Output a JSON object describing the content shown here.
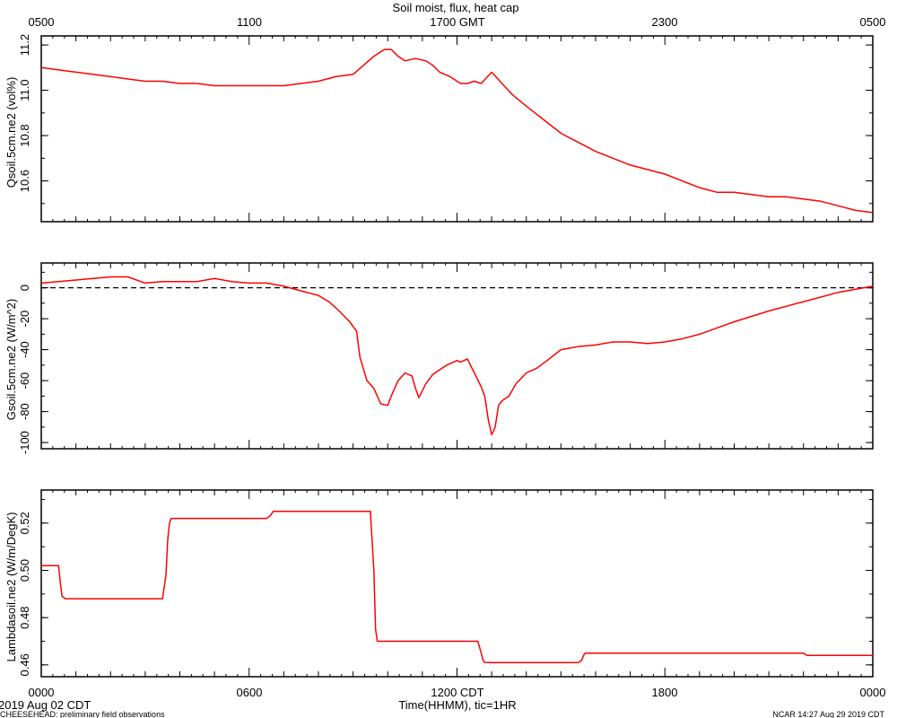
{
  "title": "Soil moist, flux, heat cap",
  "top_axis_ticks": [
    "0500",
    "1100",
    "1700 GMT",
    "2300",
    "0500"
  ],
  "bottom_axis_ticks": [
    "0000",
    "0600",
    "1200 CDT",
    "1800",
    "0000"
  ],
  "xlabel": "Time(HHMM), tic=1HR",
  "date_label": "2019 Aug 02 CDT",
  "footer_left": "CHEESEHEAD: preliminary field observations",
  "footer_right": "NCAR 14:27 Aug 29 2019 CDT",
  "colors": {
    "series": "#ff0000",
    "axes": "#000000",
    "zero_line": "#000000"
  },
  "chart_data": [
    {
      "type": "line",
      "name": "qsoil",
      "ylabel": "Qsoil.5cm.ne2 (vol%)",
      "xlim": [
        0,
        24
      ],
      "ylim": [
        10.42,
        11.24
      ],
      "yticks": [
        10.6,
        10.8,
        11.0,
        11.2
      ],
      "ytick_labels": [
        "10.6",
        "10.8",
        "11.0",
        "11.2"
      ],
      "zero_line": false,
      "x": [
        0,
        0.5,
        1,
        1.5,
        2,
        2.5,
        3,
        3.5,
        4,
        4.5,
        5,
        5.5,
        6,
        6.5,
        7,
        7.5,
        8,
        8.5,
        9,
        9.3,
        9.6,
        9.9,
        10.1,
        10.3,
        10.5,
        10.8,
        11.1,
        11.3,
        11.5,
        11.8,
        12.1,
        12.3,
        12.5,
        12.7,
        13,
        13.3,
        13.6,
        14,
        14.5,
        15,
        15.5,
        16,
        16.5,
        17,
        17.5,
        18,
        18.5,
        19,
        19.5,
        20,
        20.5,
        21,
        21.5,
        22,
        22.5,
        23,
        23.5,
        24
      ],
      "values": [
        11.1,
        11.09,
        11.08,
        11.07,
        11.06,
        11.05,
        11.04,
        11.04,
        11.03,
        11.03,
        11.02,
        11.02,
        11.02,
        11.02,
        11.02,
        11.03,
        11.04,
        11.06,
        11.07,
        11.11,
        11.15,
        11.18,
        11.18,
        11.15,
        11.13,
        11.14,
        11.13,
        11.11,
        11.08,
        11.06,
        11.03,
        11.03,
        11.04,
        11.03,
        11.08,
        11.03,
        10.98,
        10.93,
        10.87,
        10.81,
        10.77,
        10.73,
        10.7,
        10.67,
        10.65,
        10.63,
        10.6,
        10.57,
        10.55,
        10.55,
        10.54,
        10.53,
        10.53,
        10.52,
        10.51,
        10.49,
        10.47,
        10.46
      ]
    },
    {
      "type": "line",
      "name": "gsoil",
      "ylabel": "Gsoil.5cm.ne2 (W/m^2)",
      "xlim": [
        0,
        24
      ],
      "ylim": [
        -104,
        16
      ],
      "yticks": [
        -100,
        -80,
        -60,
        -40,
        -20,
        0
      ],
      "ytick_labels": [
        "-100",
        "-80",
        "-60",
        "-40",
        "-20",
        "0"
      ],
      "zero_line": true,
      "x": [
        0,
        0.5,
        1,
        1.5,
        2,
        2.5,
        3,
        3.5,
        4,
        4.5,
        5,
        5.5,
        6,
        6.5,
        7,
        7.5,
        8,
        8.3,
        8.6,
        8.9,
        9.0,
        9.1,
        9.2,
        9.4,
        9.6,
        9.8,
        10.0,
        10.1,
        10.3,
        10.5,
        10.7,
        10.8,
        10.9,
        11.1,
        11.3,
        11.5,
        11.7,
        11.9,
        12.0,
        12.1,
        12.3,
        12.5,
        12.7,
        12.8,
        12.9,
        13.0,
        13.1,
        13.2,
        13.3,
        13.5,
        13.7,
        14.0,
        14.3,
        14.6,
        15.0,
        15.5,
        16,
        16.5,
        17,
        17.5,
        18,
        18.5,
        19,
        19.5,
        20,
        21,
        22,
        23,
        24
      ],
      "values": [
        3,
        4,
        5,
        6,
        7,
        7,
        3,
        4,
        4,
        4,
        6,
        4,
        3,
        3,
        1,
        -2,
        -5,
        -9,
        -15,
        -22,
        -25,
        -28,
        -45,
        -60,
        -65,
        -75,
        -76,
        -70,
        -60,
        -55,
        -57,
        -65,
        -71,
        -62,
        -56,
        -53,
        -50,
        -48,
        -47,
        -48,
        -46,
        -55,
        -64,
        -70,
        -85,
        -95,
        -90,
        -76,
        -73,
        -70,
        -62,
        -55,
        -52,
        -47,
        -40,
        -38,
        -37,
        -35,
        -35,
        -36,
        -35,
        -33,
        -30,
        -26,
        -22,
        -15,
        -9,
        -3,
        1
      ]
    },
    {
      "type": "line",
      "name": "lambdasoil",
      "ylabel": "Lambdasoil.ne2 (W/m/DegK)",
      "xlim": [
        0,
        24
      ],
      "ylim": [
        0.455,
        0.534
      ],
      "yticks": [
        0.46,
        0.48,
        0.5,
        0.52
      ],
      "ytick_labels": [
        "0.46",
        "0.48",
        "0.50",
        "0.52"
      ],
      "zero_line": false,
      "x": [
        0,
        0.5,
        0.55,
        0.6,
        0.7,
        3.5,
        3.6,
        3.65,
        3.7,
        3.75,
        6.5,
        6.6,
        6.7,
        6.8,
        9.5,
        9.6,
        9.65,
        9.7,
        9.8,
        12.6,
        12.7,
        12.75,
        12.8,
        15.5,
        15.6,
        15.65,
        15.7,
        22.0,
        22.1,
        22.2,
        24.0
      ],
      "values": [
        0.502,
        0.502,
        0.495,
        0.489,
        0.488,
        0.488,
        0.498,
        0.513,
        0.52,
        0.522,
        0.522,
        0.523,
        0.525,
        0.525,
        0.525,
        0.5,
        0.475,
        0.47,
        0.47,
        0.47,
        0.465,
        0.462,
        0.461,
        0.461,
        0.462,
        0.464,
        0.465,
        0.465,
        0.464,
        0.464,
        0.464
      ]
    }
  ]
}
